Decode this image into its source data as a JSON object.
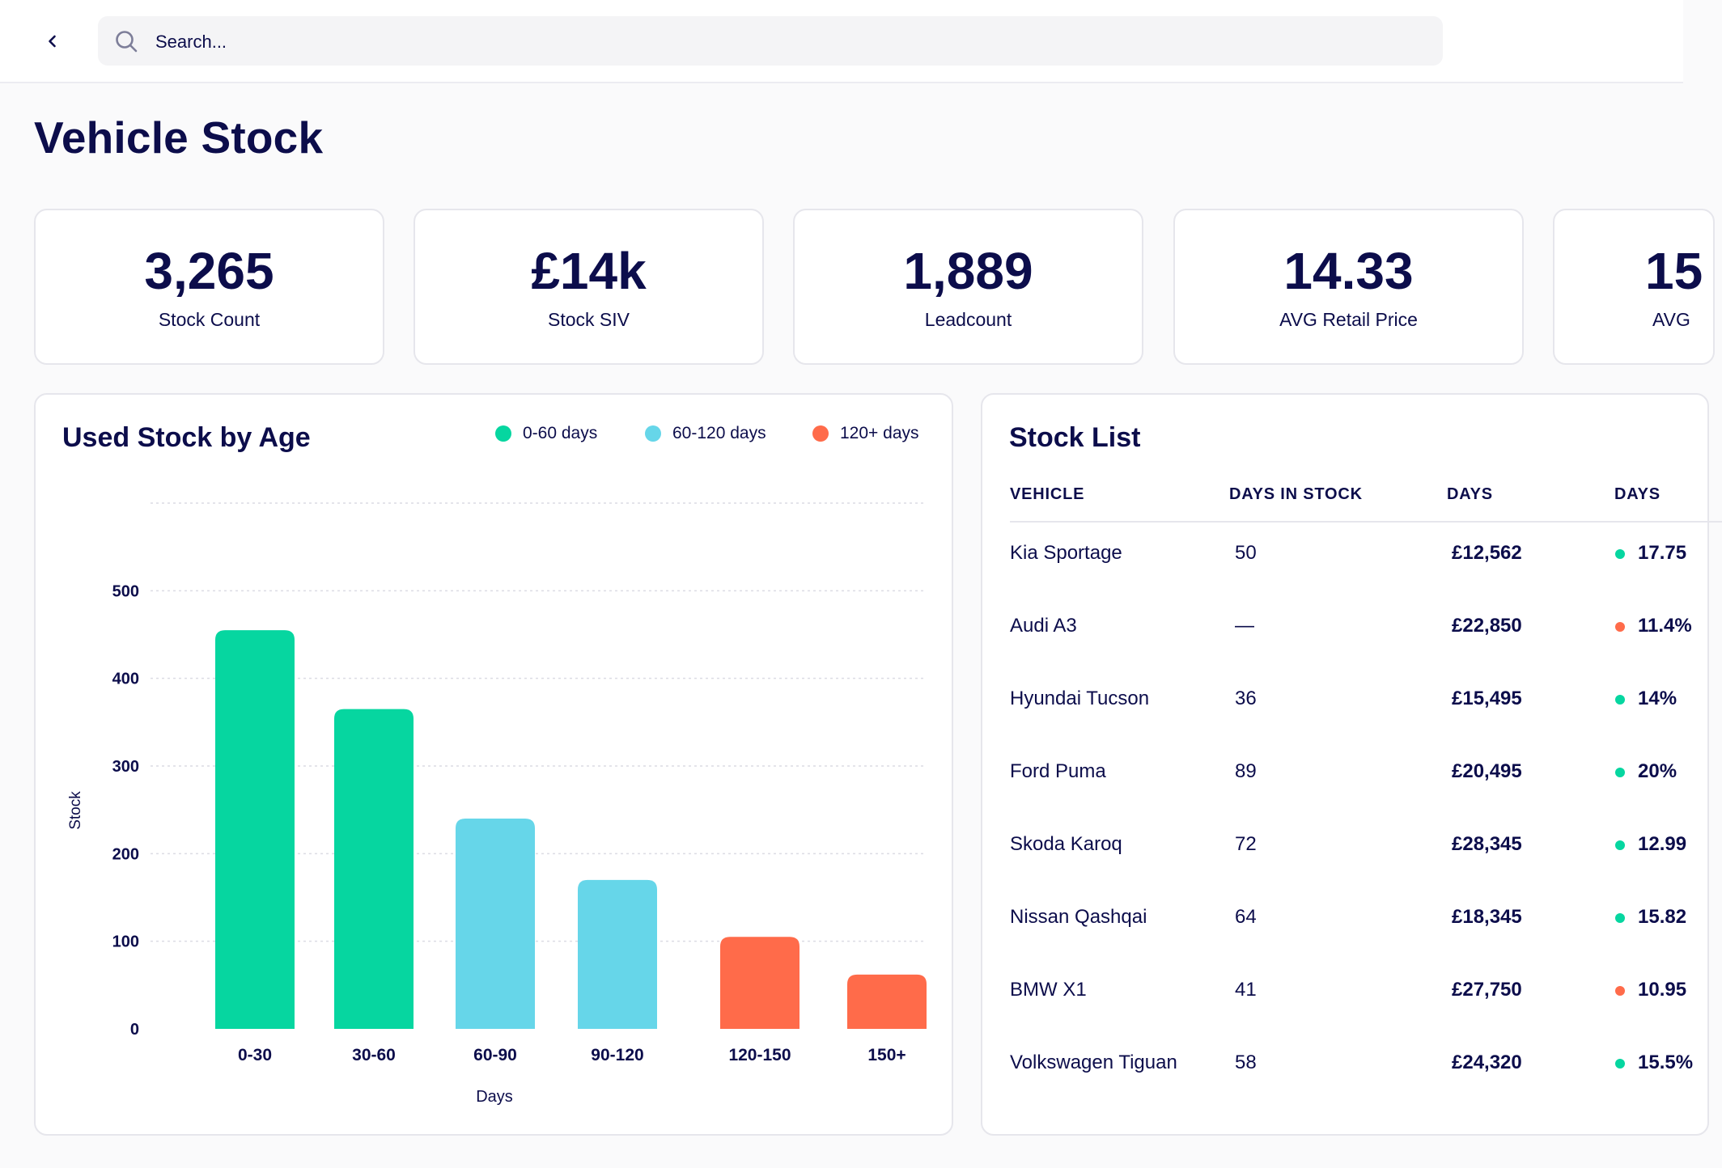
{
  "search": {
    "placeholder": "Search..."
  },
  "page": {
    "title": "Vehicle Stock"
  },
  "kpis": [
    {
      "value": "3,265",
      "label": "Stock Count"
    },
    {
      "value": "£14k",
      "label": "Stock SIV"
    },
    {
      "value": "1,889",
      "label": "Leadcount"
    },
    {
      "value": "14.33",
      "label": "AVG Retail Price"
    },
    {
      "value": "15",
      "label": "AVG"
    }
  ],
  "chart_panel": {
    "title": "Used Stock by Age",
    "legend": [
      {
        "label": "0-60 days",
        "color": "#06d6a0"
      },
      {
        "label": "60-120 days",
        "color": "#66d6e9"
      },
      {
        "label": "120+ days",
        "color": "#ff6b4a"
      }
    ]
  },
  "chart_data": {
    "type": "bar",
    "title": "Used Stock by Age",
    "xlabel": "Days",
    "ylabel": "Stock",
    "categories": [
      "0-30",
      "30-60",
      "60-90",
      "90-120",
      "120-150",
      "150+"
    ],
    "values": [
      455,
      365,
      240,
      170,
      105,
      62
    ],
    "bar_groups": [
      "0-60 days",
      "0-60 days",
      "60-120 days",
      "60-120 days",
      "120+ days",
      "120+ days"
    ],
    "bar_colors": [
      "#06d6a0",
      "#06d6a0",
      "#66d6e9",
      "#66d6e9",
      "#ff6b4a",
      "#ff6b4a"
    ],
    "yticks": [
      0,
      100,
      200,
      300,
      400,
      500
    ],
    "ylim": [
      0,
      600
    ],
    "grid": true,
    "legend_position": "top-right"
  },
  "stock_list": {
    "title": "Stock List",
    "columns": [
      "VEHICLE",
      "DAYS IN STOCK",
      "DAYS",
      "DAYS"
    ],
    "rows": [
      {
        "vehicle": "Kia Sportage",
        "days_in_stock": "50",
        "price": "£12,562",
        "trend": "up",
        "trend_color": "#06d6a0",
        "pct": "17.75"
      },
      {
        "vehicle": "Audi A3",
        "days_in_stock": "—",
        "price": "£22,850",
        "trend": "down",
        "trend_color": "#ff6b4a",
        "pct": "11.4%"
      },
      {
        "vehicle": "Hyundai Tucson",
        "days_in_stock": "36",
        "price": "£15,495",
        "trend": "up",
        "trend_color": "#06d6a0",
        "pct": "14%"
      },
      {
        "vehicle": "Ford Puma",
        "days_in_stock": "89",
        "price": "£20,495",
        "trend": "up",
        "trend_color": "#06d6a0",
        "pct": "20%"
      },
      {
        "vehicle": "Skoda Karoq",
        "days_in_stock": "72",
        "price": "£28,345",
        "trend": "up",
        "trend_color": "#06d6a0",
        "pct": "12.99"
      },
      {
        "vehicle": "Nissan Qashqai",
        "days_in_stock": "64",
        "price": "£18,345",
        "trend": "up",
        "trend_color": "#06d6a0",
        "pct": "15.82"
      },
      {
        "vehicle": "BMW X1",
        "days_in_stock": "41",
        "price": "£27,750",
        "trend": "down",
        "trend_color": "#ff6b4a",
        "pct": "10.95"
      },
      {
        "vehicle": "Volkswagen Tiguan",
        "days_in_stock": "58",
        "price": "£24,320",
        "trend": "up",
        "trend_color": "#06d6a0",
        "pct": "15.5%"
      }
    ]
  }
}
